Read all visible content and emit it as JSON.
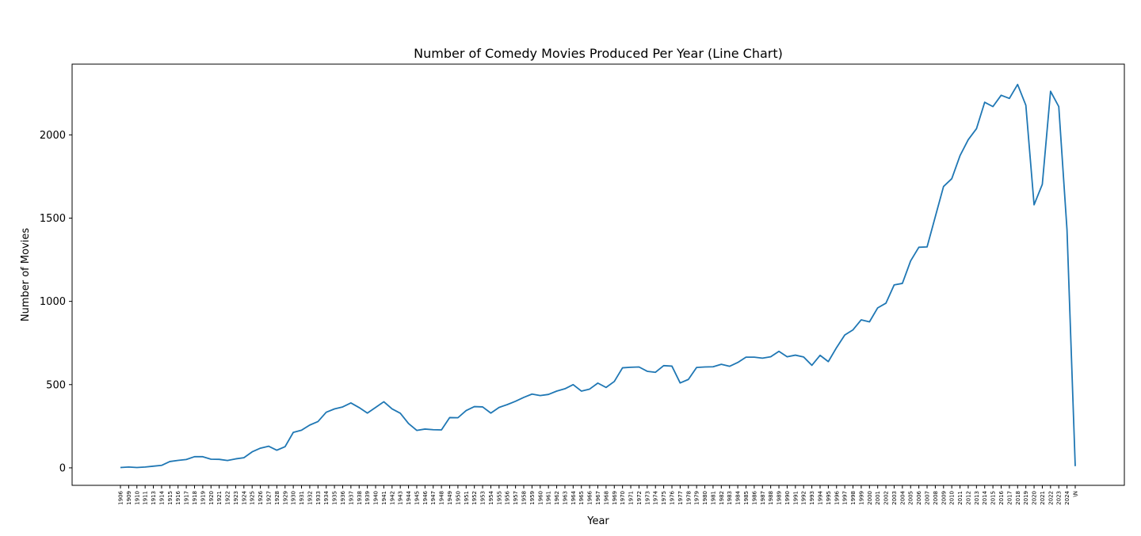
{
  "chart_data": {
    "type": "line",
    "title": "Number of Comedy Movies Produced Per Year (Line Chart)",
    "xlabel": "Year",
    "ylabel": "Number of Movies",
    "ylim": [
      -105,
      2425
    ],
    "yticks": [
      0,
      500,
      1000,
      1500,
      2000
    ],
    "grid": false,
    "legend": "none",
    "color": "#1f77b4",
    "categories": [
      "1906",
      "1909",
      "1910",
      "1911",
      "1913",
      "1914",
      "1915",
      "1916",
      "1917",
      "1918",
      "1919",
      "1920",
      "1921",
      "1922",
      "1923",
      "1924",
      "1925",
      "1926",
      "1927",
      "1928",
      "1929",
      "1930",
      "1931",
      "1932",
      "1933",
      "1934",
      "1935",
      "1936",
      "1937",
      "1938",
      "1939",
      "1940",
      "1941",
      "1942",
      "1943",
      "1944",
      "1945",
      "1946",
      "1947",
      "1948",
      "1949",
      "1950",
      "1951",
      "1952",
      "1953",
      "1954",
      "1955",
      "1956",
      "1957",
      "1958",
      "1959",
      "1960",
      "1961",
      "1962",
      "1963",
      "1964",
      "1965",
      "1966",
      "1967",
      "1968",
      "1969",
      "1970",
      "1971",
      "1972",
      "1973",
      "1974",
      "1975",
      "1976",
      "1977",
      "1978",
      "1979",
      "1980",
      "1981",
      "1982",
      "1983",
      "1984",
      "1985",
      "1986",
      "1987",
      "1988",
      "1989",
      "1990",
      "1991",
      "1992",
      "1993",
      "1994",
      "1995",
      "1996",
      "1997",
      "1998",
      "1999",
      "2000",
      "2001",
      "2002",
      "2003",
      "2004",
      "2005",
      "2006",
      "2007",
      "2008",
      "2009",
      "2010",
      "2011",
      "2012",
      "2013",
      "2014",
      "2015",
      "2016",
      "2017",
      "2018",
      "2019",
      "2020",
      "2021",
      "2022",
      "2023",
      "2024",
      "\\N"
    ],
    "values": [
      2,
      5,
      2,
      5,
      10,
      15,
      38,
      45,
      50,
      67,
      67,
      52,
      51,
      44,
      54,
      61,
      96,
      118,
      130,
      106,
      127,
      213,
      226,
      257,
      278,
      334,
      354,
      366,
      390,
      362,
      329,
      363,
      397,
      354,
      328,
      266,
      225,
      233,
      229,
      228,
      302,
      301,
      344,
      368,
      366,
      329,
      363,
      380,
      400,
      423,
      443,
      434,
      441,
      461,
      475,
      500,
      461,
      473,
      509,
      483,
      519,
      601,
      604,
      606,
      580,
      574,
      614,
      611,
      510,
      531,
      603,
      606,
      607,
      622,
      610,
      633,
      665,
      665,
      659,
      667,
      700,
      667,
      677,
      666,
      616,
      676,
      638,
      722,
      798,
      829,
      889,
      877,
      961,
      989,
      1099,
      1108,
      1243,
      1325,
      1327,
      1509,
      1690,
      1737,
      1875,
      1971,
      2037,
      2196,
      2170,
      2238,
      2219,
      2303,
      2178,
      1580,
      1703,
      2262,
      2170,
      1430,
      10
    ]
  }
}
